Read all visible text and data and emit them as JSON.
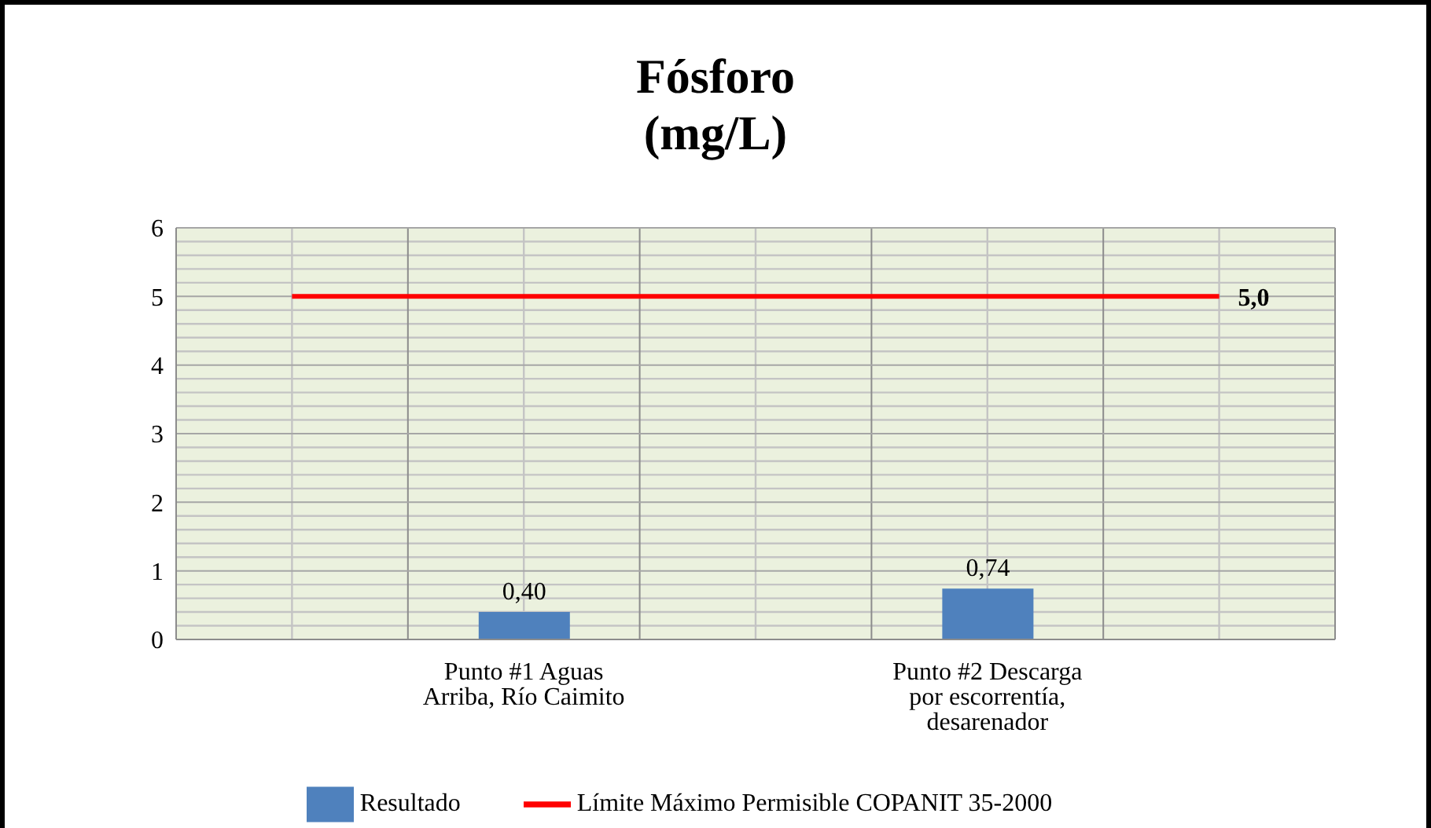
{
  "chart_data": {
    "type": "bar",
    "title": "Fósforo",
    "subtitle": "(mg/L)",
    "categories": [
      null,
      "Punto #1 Aguas Arriba, Río Caimito",
      null,
      "Punto #2 Descarga por escorrentía, desarenador",
      null
    ],
    "series": [
      {
        "name": "Resultado",
        "color": "#4f81bd",
        "values": [
          null,
          0.4,
          null,
          0.74,
          null
        ],
        "value_labels": [
          null,
          "0,40",
          null,
          "0,74",
          null
        ]
      },
      {
        "name": "Límite Máximo Permisible COPANIT 35-2000",
        "type": "line",
        "color": "#ff0000",
        "values": [
          5,
          5,
          5,
          5,
          5
        ],
        "value_labels": [
          null,
          null,
          null,
          null,
          "5,0"
        ]
      }
    ],
    "ylim": [
      0,
      6
    ],
    "yticks": [
      0,
      1,
      2,
      3,
      4,
      5,
      6
    ],
    "grid": true,
    "legend": "bottom",
    "marker": "none"
  }
}
